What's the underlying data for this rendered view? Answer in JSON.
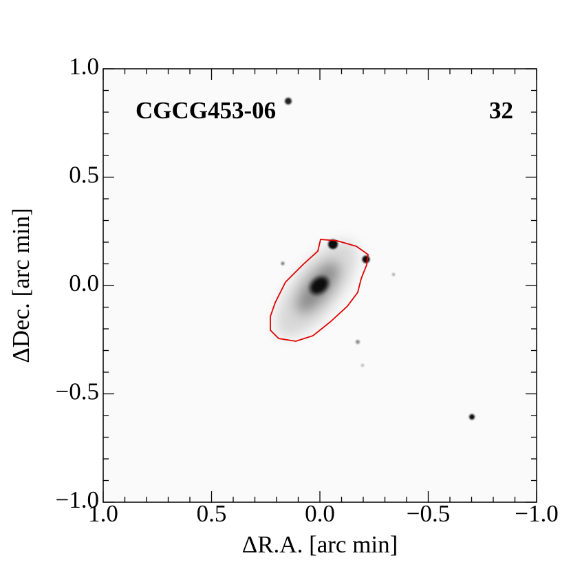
{
  "chart_data": {
    "type": "image",
    "annotations": [
      "CGCG453-06",
      "32"
    ],
    "xlabel": "ΔR.A. [arc min]",
    "ylabel": "ΔDec. [arc min]",
    "xlim": [
      1.0,
      -1.0
    ],
    "ylim": [
      -1.0,
      1.0
    ],
    "xticks": [
      {
        "value": 1.0,
        "label": "1.0"
      },
      0.5,
      {
        "value": 0.0,
        "label": "0.0"
      },
      {
        "value": -0.5,
        "label": "−0.5"
      },
      {
        "value": -1.0,
        "label": "−1.0"
      }
    ],
    "yticks": [
      {
        "value": -1.0,
        "label": "−1.0"
      },
      {
        "value": -0.5,
        "label": "−0.5"
      },
      {
        "value": 0.0,
        "label": "0.0"
      },
      0.5,
      {
        "value": 1.0,
        "label": "1.0"
      }
    ],
    "contour_color": "#e00000"
  }
}
